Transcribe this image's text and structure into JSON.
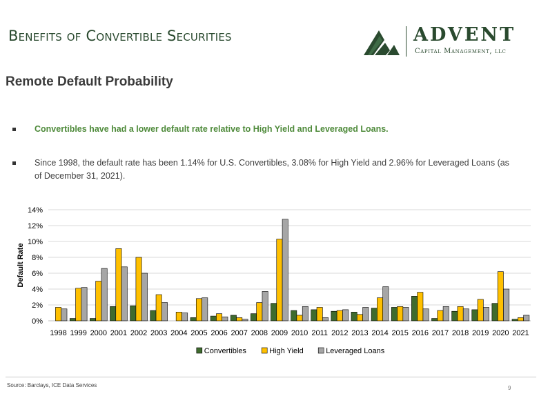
{
  "header": {
    "title": "Benefits of Convertible Securities",
    "logo_name": "ADVENT",
    "logo_sub": "Capital Management, llc"
  },
  "section_title": "Remote Default Probability",
  "bullets": [
    "Convertibles have had a lower default rate relative to High Yield and Leveraged Loans.",
    "Since 1998, the default rate has been 1.14% for U.S. Convertibles, 3.08% for High Yield and 2.96% for Leveraged Loans (as of December 31, 2021)."
  ],
  "footer": {
    "source": "Source: Barclays, ICE Data Services",
    "page_number": "9"
  },
  "colors": {
    "brand_green": "#2a4a2f",
    "bullet_green": "#4e8a3a"
  },
  "chart_data": {
    "type": "bar",
    "title": "",
    "xlabel": "",
    "ylabel": "Default Rate",
    "ylim": [
      0,
      14
    ],
    "y_ticks": [
      "0%",
      "2%",
      "4%",
      "6%",
      "8%",
      "10%",
      "12%",
      "14%"
    ],
    "grid": true,
    "legend_position": "bottom",
    "categories": [
      "1998",
      "1999",
      "2000",
      "2001",
      "2002",
      "2003",
      "2004",
      "2005",
      "2006",
      "2007",
      "2008",
      "2009",
      "2010",
      "2011",
      "2012",
      "2013",
      "2014",
      "2015",
      "2016",
      "2017",
      "2018",
      "2019",
      "2020",
      "2021"
    ],
    "series": [
      {
        "name": "Convertibles",
        "color": "#3f6b2e",
        "values": [
          0.0,
          0.3,
          0.3,
          1.8,
          1.9,
          1.3,
          0.0,
          0.4,
          0.6,
          0.7,
          0.9,
          2.2,
          1.3,
          1.4,
          1.2,
          1.1,
          1.6,
          1.7,
          3.1,
          0.3,
          1.2,
          1.4,
          2.2,
          0.2
        ]
      },
      {
        "name": "High Yield",
        "color": "#ffc000",
        "values": [
          1.7,
          4.1,
          5.0,
          9.1,
          8.0,
          3.3,
          1.1,
          2.8,
          0.9,
          0.4,
          2.3,
          10.3,
          0.7,
          1.7,
          1.3,
          0.8,
          2.9,
          1.8,
          3.6,
          1.3,
          1.8,
          2.7,
          6.2,
          0.4
        ]
      },
      {
        "name": "Leveraged Loans",
        "color": "#a6a6a6",
        "values": [
          1.5,
          4.2,
          6.6,
          6.8,
          6.0,
          2.3,
          1.0,
          2.9,
          0.5,
          0.2,
          3.7,
          12.8,
          1.8,
          0.4,
          1.4,
          1.7,
          4.3,
          1.7,
          1.5,
          1.8,
          1.5,
          1.7,
          4.0,
          0.7
        ]
      }
    ]
  }
}
